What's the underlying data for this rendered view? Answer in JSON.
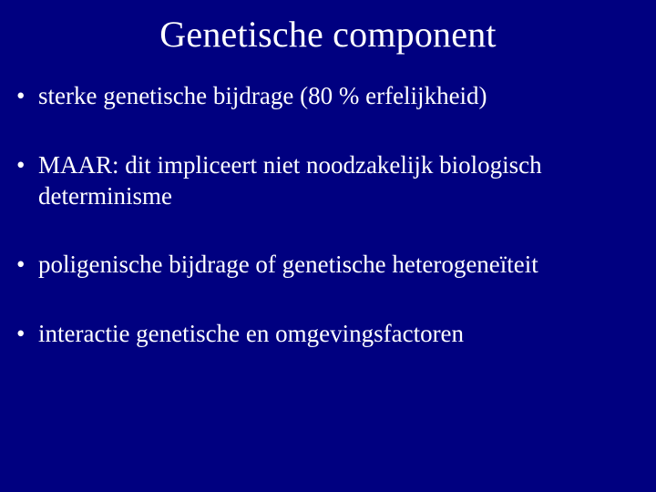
{
  "slide": {
    "background_color": "#000080",
    "text_color": "#ffffff",
    "font_family": "Times New Roman",
    "title": {
      "text": "Genetische component",
      "fontsize": 40,
      "align": "center"
    },
    "bullets": {
      "fontsize": 27,
      "marker": "•",
      "items": [
        "sterke genetische bijdrage (80 % erfelijkheid)",
        "MAAR: dit impliceert niet noodzakelijk    biologisch determinisme",
        "poligenische bijdrage of genetische   heterogeneïteit",
        "interactie genetische en omgevingsfactoren"
      ]
    }
  }
}
